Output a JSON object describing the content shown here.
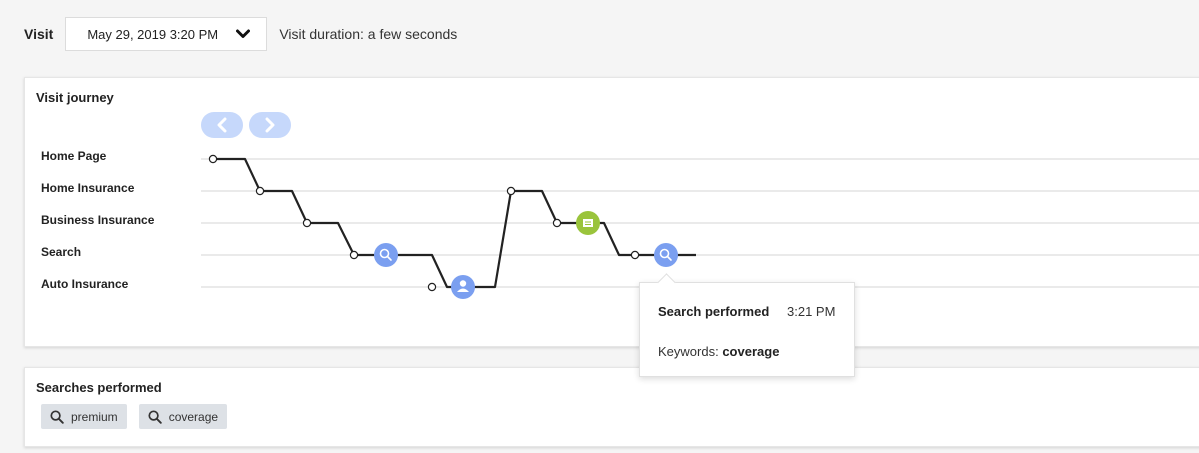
{
  "visit": {
    "label": "Visit",
    "selected_date": "May 29, 2019 3:20 PM",
    "duration_text": "Visit duration: a few seconds"
  },
  "journey": {
    "title": "Visit journey",
    "nav": {
      "prev_icon": "chevron-left-icon",
      "next_icon": "chevron-right-icon"
    },
    "rows": [
      "Home Page",
      "Home Insurance",
      "Business Insurance",
      "Search",
      "Auto Insurance"
    ],
    "events": [
      {
        "type": "search",
        "icon": "search-icon",
        "row": "Search"
      },
      {
        "type": "profile",
        "icon": "user-icon",
        "row": "Auto Insurance"
      },
      {
        "type": "form",
        "icon": "form-icon",
        "row": "Business Insurance"
      },
      {
        "type": "search",
        "icon": "search-icon",
        "row": "Search",
        "selected": true
      }
    ],
    "colors": {
      "event_blue": "#7b9ff0",
      "event_green": "#9ac43c",
      "nav_button": "#c6d8fb",
      "line": "#222222"
    }
  },
  "tooltip": {
    "title": "Search performed",
    "time": "3:21 PM",
    "keywords_label": "Keywords:",
    "keywords_value": "coverage"
  },
  "searches": {
    "title": "Searches performed",
    "items": [
      "premium",
      "coverage"
    ]
  }
}
